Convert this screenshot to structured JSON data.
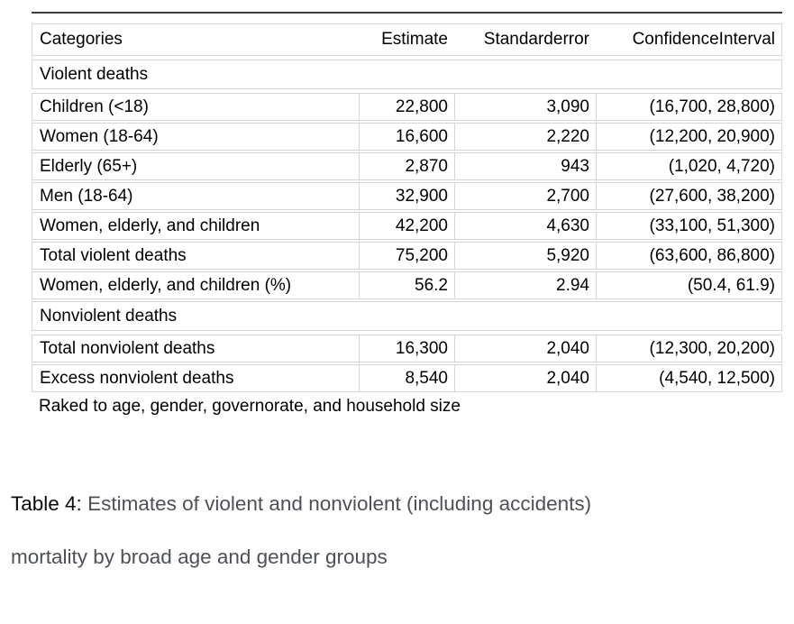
{
  "table": {
    "columns": [
      "Categories",
      "Estimate",
      "Standarderror",
      "ConfidenceInterval"
    ],
    "sections": [
      {
        "label": "Violent deaths",
        "rows": [
          [
            "Children (<18)",
            "22,800",
            "3,090",
            "(16,700, 28,800)"
          ],
          [
            "Women (18-64)",
            "16,600",
            "2,220",
            "(12,200, 20,900)"
          ],
          [
            "Elderly (65+)",
            "2,870",
            "943",
            "(1,020, 4,720)"
          ],
          [
            "Men (18-64)",
            "32,900",
            "2,700",
            "(27,600, 38,200)"
          ],
          [
            "Women, elderly, and children",
            "42,200",
            "4,630",
            "(33,100, 51,300)"
          ],
          [
            "Total violent deaths",
            "75,200",
            "5,920",
            "(63,600, 86,800)"
          ],
          [
            "Women, elderly, and children (%)",
            "56.2",
            "2.94",
            "(50.4, 61.9)"
          ]
        ]
      },
      {
        "label": "Nonviolent deaths",
        "rows": [
          [
            "Total nonviolent deaths",
            "16,300",
            "2,040",
            "(12,300, 20,200)"
          ],
          [
            "Excess nonviolent deaths",
            "8,540",
            "2,040",
            "(4,540, 12,500)"
          ]
        ]
      }
    ],
    "note": "Raked to age, gender, governorate, and household size"
  },
  "caption": {
    "label": "Table 4:",
    "text_rest": " Estimates of violent and nonviolent (including accidents)",
    "text_line2": "mortality by broad age and gender groups"
  },
  "colors": {
    "top_rule": "#3b3b3b",
    "cell_border": "#d5d5d5",
    "caption_gray": "#4d5156"
  }
}
